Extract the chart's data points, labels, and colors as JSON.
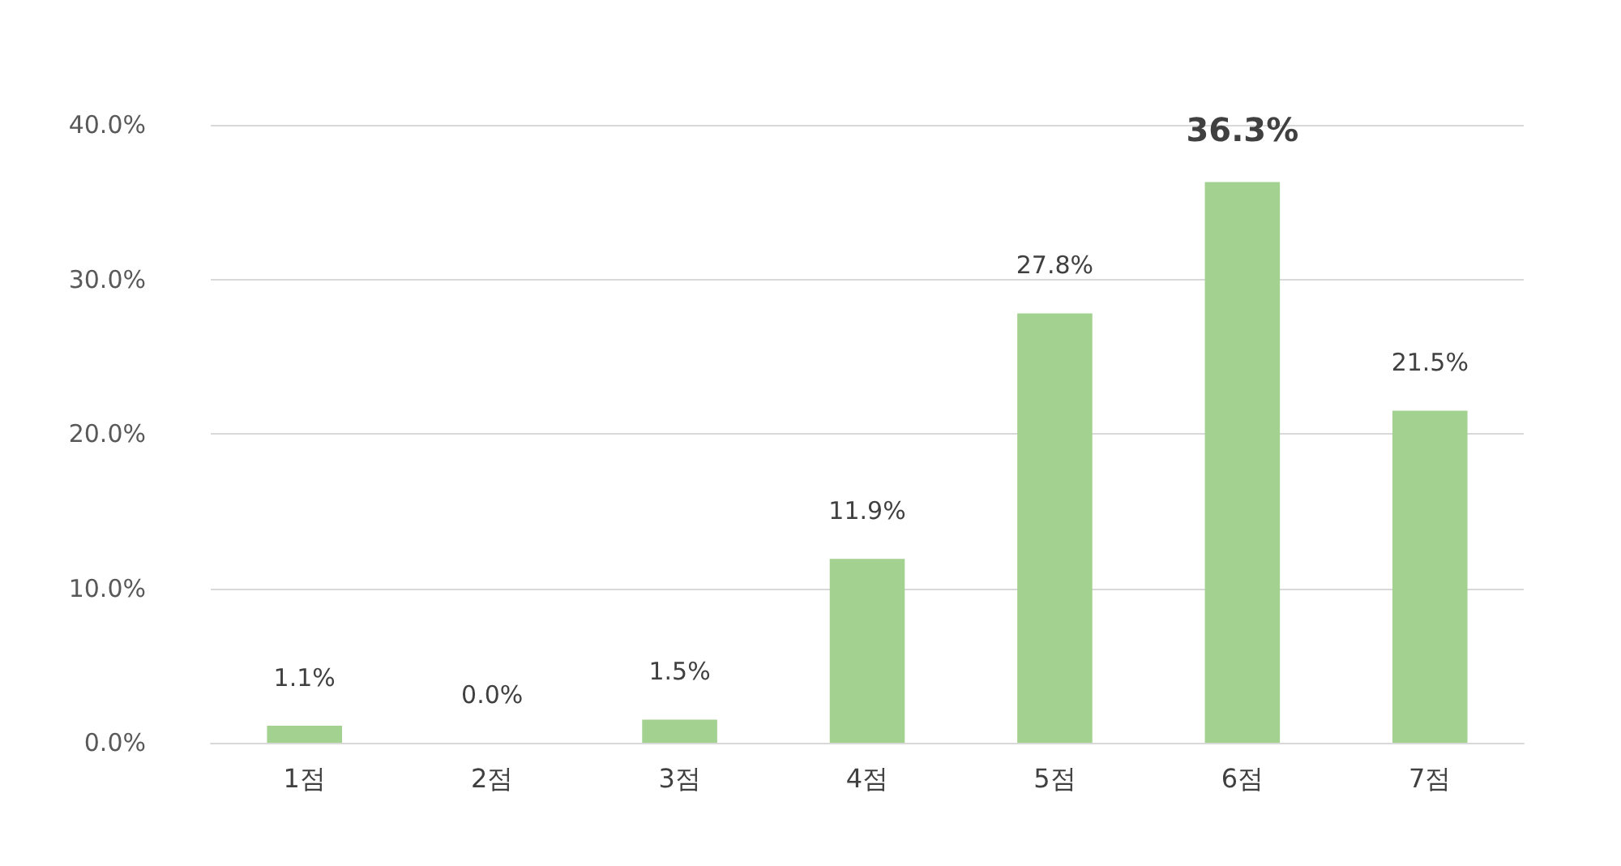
{
  "chart_data": {
    "type": "bar",
    "categories": [
      "1점",
      "2점",
      "3점",
      "4점",
      "5점",
      "6점",
      "7점"
    ],
    "values": [
      1.1,
      0.0,
      1.5,
      11.9,
      27.8,
      36.3,
      21.5
    ],
    "value_labels": [
      "1.1%",
      "0.0%",
      "1.5%",
      "11.9%",
      "27.8%",
      "36.3%",
      "21.5%"
    ],
    "color": "#a3d18f",
    "ylim": [
      0,
      40
    ],
    "yticks": [
      {
        "value": 0,
        "label": "0.0%"
      },
      {
        "value": 10,
        "label": "10.0%"
      },
      {
        "value": 20,
        "label": "20.0%"
      },
      {
        "value": 30,
        "label": "30.0%"
      },
      {
        "value": 40,
        "label": "40.0%"
      }
    ],
    "grid": "y"
  }
}
